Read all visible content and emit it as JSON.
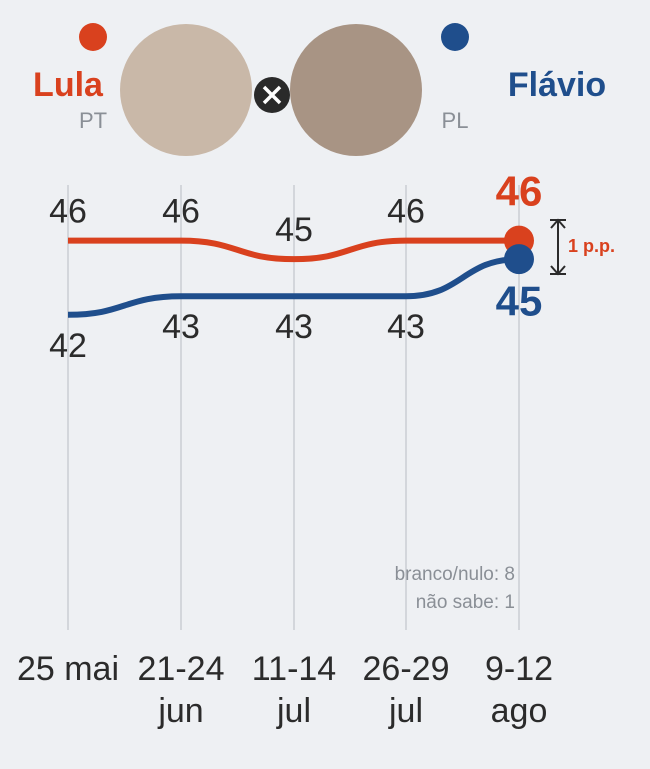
{
  "chart_data": {
    "type": "line",
    "categories": [
      "25 mai",
      "21-24 jun",
      "11-14 jul",
      "26-29 jul",
      "9-12 ago"
    ],
    "series": [
      {
        "name": "Lula",
        "party": "PT",
        "color": "#d9411e",
        "values": [
          46,
          46,
          45,
          46,
          46
        ]
      },
      {
        "name": "Flávio",
        "party": "PL",
        "color": "#1f4e8c",
        "values": [
          42,
          43,
          43,
          43,
          45
        ]
      }
    ],
    "ylim": [
      25,
      49
    ],
    "annotation": "1 p.p.",
    "notes": [
      "branco/nulo: 8",
      "não sabe: 1"
    ]
  }
}
